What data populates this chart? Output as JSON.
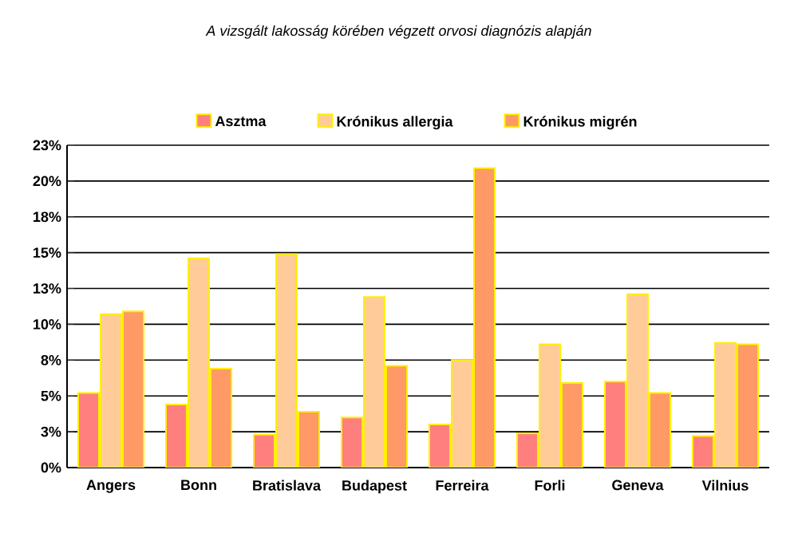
{
  "chart_data": {
    "type": "bar",
    "title": "A vizsgált lakosság körében végzett orvosi diagnózis alapján",
    "categories": [
      "Angers",
      "Bonn",
      "Bratislava",
      "Budapest",
      "Ferreira",
      "Forli",
      "Geneva",
      "Vilnius"
    ],
    "series": [
      {
        "name": "Asztma",
        "color": "#ff7f7f",
        "values": [
          5.2,
          4.4,
          2.3,
          3.5,
          3.0,
          2.4,
          6.0,
          2.2
        ]
      },
      {
        "name": "Krónikus allergia",
        "color": "#ffcc99",
        "values": [
          10.7,
          14.6,
          14.9,
          11.9,
          7.5,
          8.6,
          12.1,
          8.7
        ]
      },
      {
        "name": "Krónikus migrén",
        "color": "#ff9966",
        "values": [
          10.9,
          6.9,
          3.9,
          7.1,
          20.9,
          5.9,
          5.2,
          8.6
        ]
      }
    ],
    "ylim": [
      0,
      22.5
    ],
    "yticks": [
      {
        "value": 0,
        "label": "0%"
      },
      {
        "value": 2.5,
        "label": "3%"
      },
      {
        "value": 5,
        "label": "5%"
      },
      {
        "value": 7.5,
        "label": "8%"
      },
      {
        "value": 10,
        "label": "10%"
      },
      {
        "value": 12.5,
        "label": "13%"
      },
      {
        "value": 15,
        "label": "15%"
      },
      {
        "value": 17.5,
        "label": "18%"
      },
      {
        "value": 20,
        "label": "20%"
      },
      {
        "value": 22.5,
        "label": "23%"
      }
    ],
    "grid": "y",
    "legend": "top"
  }
}
